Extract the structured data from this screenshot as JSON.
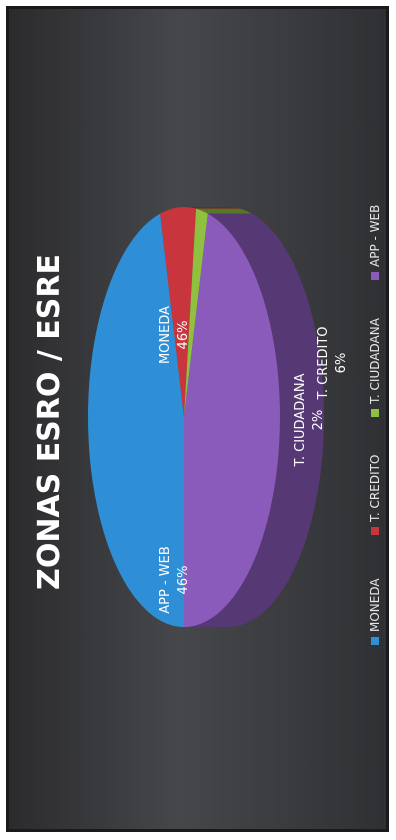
{
  "chart_data": {
    "type": "pie",
    "title": "ZONAS ESRO / ESRE",
    "categories": [
      "MONEDA",
      "T. CREDITO",
      "T. CIUDADANA",
      "APP - WEB"
    ],
    "values": [
      46,
      6,
      2,
      46
    ],
    "value_labels": [
      "46%",
      "6%",
      "2%",
      "46%"
    ],
    "colors": [
      "#2f8fd6",
      "#c8353c",
      "#8fc040",
      "#8a5bbb"
    ],
    "legend_placement": "bottom"
  }
}
